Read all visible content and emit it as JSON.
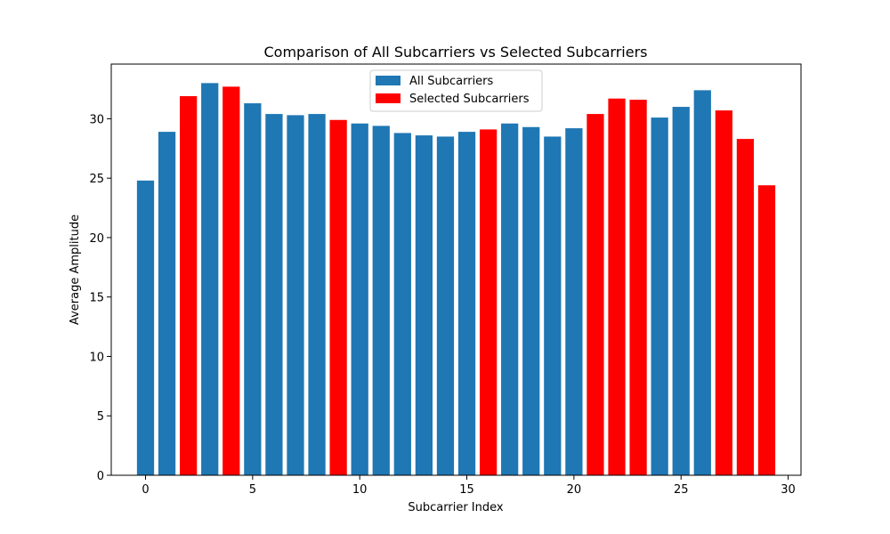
{
  "chart_data": {
    "type": "bar",
    "title": "Comparison of All Subcarriers vs Selected Subcarriers",
    "xlabel": "Subcarrier Index",
    "ylabel": "Average Amplitude",
    "xlim": [
      -1.6,
      30.6
    ],
    "ylim": [
      0,
      34.6
    ],
    "xticks": [
      0,
      5,
      10,
      15,
      20,
      25,
      30
    ],
    "yticks": [
      0,
      5,
      10,
      15,
      20,
      25,
      30
    ],
    "grid": false,
    "legend_placement": "upper-center",
    "x": [
      0,
      1,
      2,
      3,
      4,
      5,
      6,
      7,
      8,
      9,
      10,
      11,
      12,
      13,
      14,
      15,
      16,
      17,
      18,
      19,
      20,
      21,
      22,
      23,
      24,
      25,
      26,
      27,
      28,
      29
    ],
    "series": [
      {
        "name": "All Subcarriers",
        "color": "#1f77b4",
        "x": [
          0,
          1,
          3,
          5,
          6,
          7,
          8,
          10,
          11,
          12,
          13,
          14,
          15,
          17,
          18,
          19,
          20,
          24,
          25,
          26
        ],
        "values": [
          24.8,
          28.9,
          33.0,
          31.3,
          30.4,
          30.3,
          30.4,
          29.6,
          29.4,
          28.8,
          28.6,
          28.5,
          28.9,
          29.6,
          29.3,
          28.5,
          29.2,
          30.1,
          31.0,
          32.4
        ]
      },
      {
        "name": "Selected Subcarriers",
        "color": "#ff0000",
        "x": [
          2,
          4,
          9,
          16,
          21,
          22,
          23,
          27,
          28,
          29
        ],
        "values": [
          31.9,
          32.7,
          29.9,
          29.1,
          30.4,
          31.7,
          31.6,
          30.7,
          28.3,
          24.4
        ]
      }
    ]
  }
}
